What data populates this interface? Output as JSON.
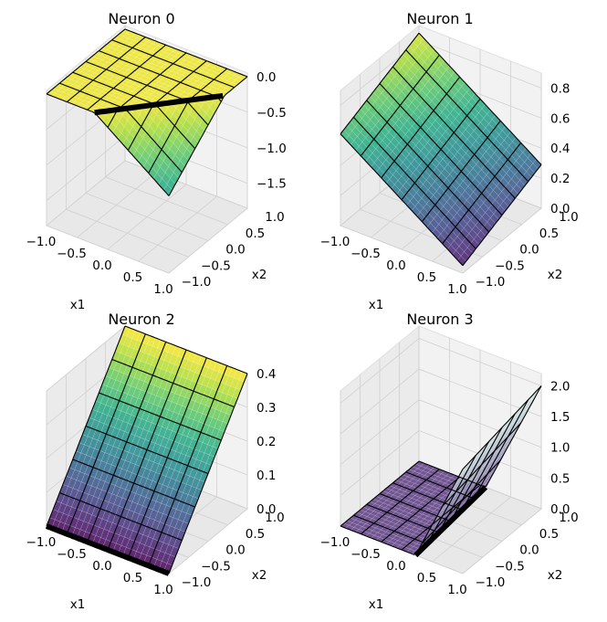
{
  "figure": {
    "description_free": true
  },
  "chart_data": [
    {
      "type": "surface3d",
      "title": "Neuron 0",
      "xlabel": "x1",
      "ylabel": "x2",
      "zlabel": "",
      "xlim": [
        -1.0,
        1.0
      ],
      "ylim": [
        -1.0,
        1.0
      ],
      "zlim": [
        -1.85,
        0.05
      ],
      "x_ticks": [
        "−1.0",
        "−0.5",
        "0.0",
        "0.5",
        "1.0"
      ],
      "y_ticks": [
        "−1.0",
        "−0.5",
        "0.0",
        "0.5",
        "1.0"
      ],
      "z_ticks": [
        "0.0",
        "−0.5",
        "−1.0",
        "−1.5"
      ],
      "z_tick_values": [
        0.0,
        -0.5,
        -1.0,
        -1.5
      ],
      "function": {
        "kind": "neg_relu",
        "w1": -0.7,
        "w2": 0.6,
        "b": 0.45,
        "scale": 0.9
      },
      "kink_line": true,
      "colormap": "viridis",
      "surface_alpha": 0.8
    },
    {
      "type": "surface3d",
      "title": "Neuron 1",
      "xlabel": "x1",
      "ylabel": "x2",
      "zlabel": "",
      "xlim": [
        -1.0,
        1.0
      ],
      "ylim": [
        -1.0,
        1.0
      ],
      "zlim": [
        0.0,
        0.9
      ],
      "x_ticks": [
        "−1.0",
        "−0.5",
        "0.0",
        "0.5",
        "1.0"
      ],
      "y_ticks": [
        "−1.0",
        "−0.5",
        "0.0",
        "0.5",
        "1.0"
      ],
      "z_ticks": [
        "0.8",
        "0.6",
        "0.4",
        "0.2",
        "0.0"
      ],
      "z_tick_values": [
        0.8,
        0.6,
        0.4,
        0.2,
        0.0
      ],
      "function": {
        "kind": "linear",
        "w1": -0.28,
        "w2": 0.12,
        "b": 0.45
      },
      "kink_line": false,
      "colormap": "viridis",
      "surface_alpha": 0.8
    },
    {
      "type": "surface3d",
      "title": "Neuron 2",
      "xlabel": "x1",
      "ylabel": "x2",
      "zlabel": "",
      "xlim": [
        -1.0,
        1.0
      ],
      "ylim": [
        -1.0,
        1.0
      ],
      "zlim": [
        0.0,
        0.4
      ],
      "x_ticks": [
        "−1.0",
        "−0.5",
        "0.0",
        "0.5",
        "1.0"
      ],
      "y_ticks": [
        "−1.0",
        "−0.5",
        "0.0",
        "0.5",
        "1.0"
      ],
      "z_ticks": [
        "0.4",
        "0.3",
        "0.2",
        "0.1",
        "0.0"
      ],
      "z_tick_values": [
        0.4,
        0.3,
        0.2,
        0.1,
        0.0
      ],
      "function": {
        "kind": "relu",
        "w1": 0.0,
        "w2": 0.2,
        "b": 0.2
      },
      "kink_line": true,
      "colormap": "viridis",
      "surface_alpha": 0.8
    },
    {
      "type": "surface3d",
      "title": "Neuron 3",
      "xlabel": "x1",
      "ylabel": "x2",
      "zlabel": "",
      "xlim": [
        -1.0,
        1.0
      ],
      "ylim": [
        -1.0,
        1.0
      ],
      "zlim": [
        0.0,
        2.2
      ],
      "x_ticks": [
        "−1.0",
        "−0.5",
        "0.0",
        "0.5",
        "1.0"
      ],
      "y_ticks": [
        "−1.0",
        "−0.5",
        "0.0",
        "0.5",
        "1.0"
      ],
      "z_ticks": [
        "2.0",
        "1.5",
        "1.0",
        "0.5",
        "0.0"
      ],
      "z_tick_values": [
        2.0,
        1.5,
        1.0,
        0.5,
        0.0
      ],
      "function": {
        "kind": "relu",
        "w1": 2.2,
        "w2": 0.15,
        "b": -0.35
      },
      "kink_line": true,
      "colormap": "bone_purple",
      "surface_alpha": 0.8
    }
  ]
}
